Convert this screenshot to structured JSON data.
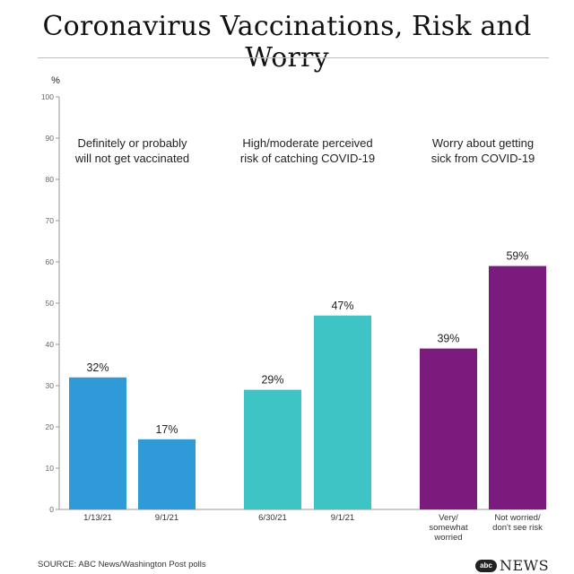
{
  "chart_data": {
    "type": "bar",
    "title": "Coronavirus Vaccinations, Risk and Worry",
    "ylabel": "%",
    "ylim": [
      0,
      100
    ],
    "yticks": [
      0,
      10,
      20,
      30,
      40,
      50,
      60,
      70,
      80,
      90,
      100
    ],
    "groups": [
      {
        "label_lines": [
          "Definitely or probably",
          "will not get vaccinated"
        ],
        "color": "#2E9BD8",
        "bars": [
          {
            "category_lines": [
              "1/13/21"
            ],
            "value": 32,
            "value_label": "32%"
          },
          {
            "category_lines": [
              "9/1/21"
            ],
            "value": 17,
            "value_label": "17%"
          }
        ]
      },
      {
        "label_lines": [
          "High/moderate perceived",
          "risk of catching COVID-19"
        ],
        "color": "#3FC4C6",
        "bars": [
          {
            "category_lines": [
              "6/30/21"
            ],
            "value": 29,
            "value_label": "29%"
          },
          {
            "category_lines": [
              "9/1/21"
            ],
            "value": 47,
            "value_label": "47%"
          }
        ]
      },
      {
        "label_lines": [
          "Worry about getting",
          "sick from COVID-19"
        ],
        "color": "#7B1B7E",
        "bars": [
          {
            "category_lines": [
              "Very/",
              "somewhat",
              "worried"
            ],
            "value": 39,
            "value_label": "39%"
          },
          {
            "category_lines": [
              "Not worried/",
              "don't see risk"
            ],
            "value": 59,
            "value_label": "59%"
          }
        ]
      }
    ],
    "source": "SOURCE: ABC News/Washington Post polls"
  },
  "logo": {
    "mark": "abc",
    "text": "NEWS"
  }
}
